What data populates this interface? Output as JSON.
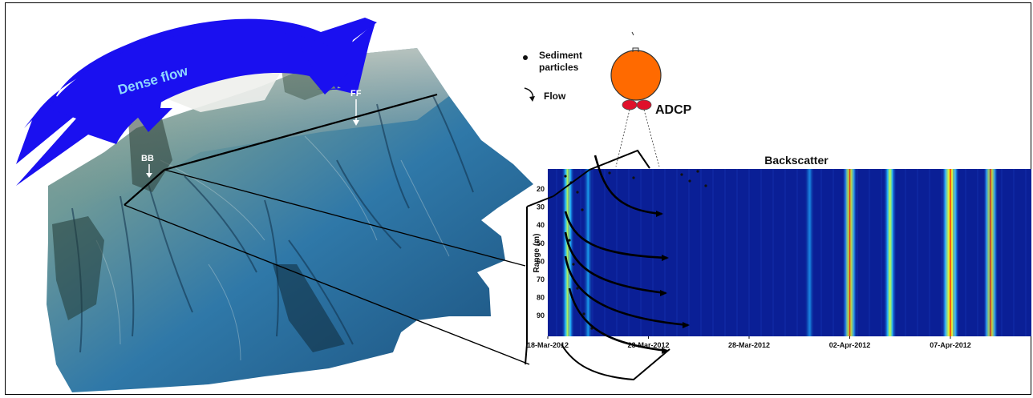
{
  "terrain": {
    "dense_flow_label": "Dense flow",
    "bb_label": "BB",
    "ff_label": "FF"
  },
  "legend": {
    "sediment_label_line1": "Sediment",
    "sediment_label_line2": "particles",
    "flow_label": "Flow"
  },
  "adcp": {
    "label": "ADCP",
    "buoy_color": "#ff6a00",
    "transducer_color": "#e0102a"
  },
  "chart_data": {
    "type": "heatmap",
    "title": "Backscatter",
    "ylabel": "Range (m)",
    "yticks": [
      "20",
      "30",
      "40",
      "50",
      "60",
      "70",
      "80",
      "90"
    ],
    "xticks": [
      "18-Mar-2012",
      "23-Mar-2012",
      "28-Mar-2012",
      "02-Apr-2012",
      "07-Apr-2012"
    ],
    "background_color": "#0a1f96",
    "events": [
      {
        "date": "19-Mar-2012",
        "intensity": "medium"
      },
      {
        "date": "20-Mar-2012",
        "intensity": "low"
      },
      {
        "date": "31-Mar-2012",
        "intensity": "low"
      },
      {
        "date": "02-Apr-2012",
        "intensity": "high"
      },
      {
        "date": "04-Apr-2012",
        "intensity": "medium"
      },
      {
        "date": "07-Apr-2012",
        "intensity": "very-high"
      },
      {
        "date": "09-Apr-2012",
        "intensity": "high"
      }
    ]
  },
  "colors": {
    "dense_flow_arrow": "#1a10f0",
    "terrain_deep": "#1e5a8c",
    "terrain_shallow": "#8fa79a"
  }
}
